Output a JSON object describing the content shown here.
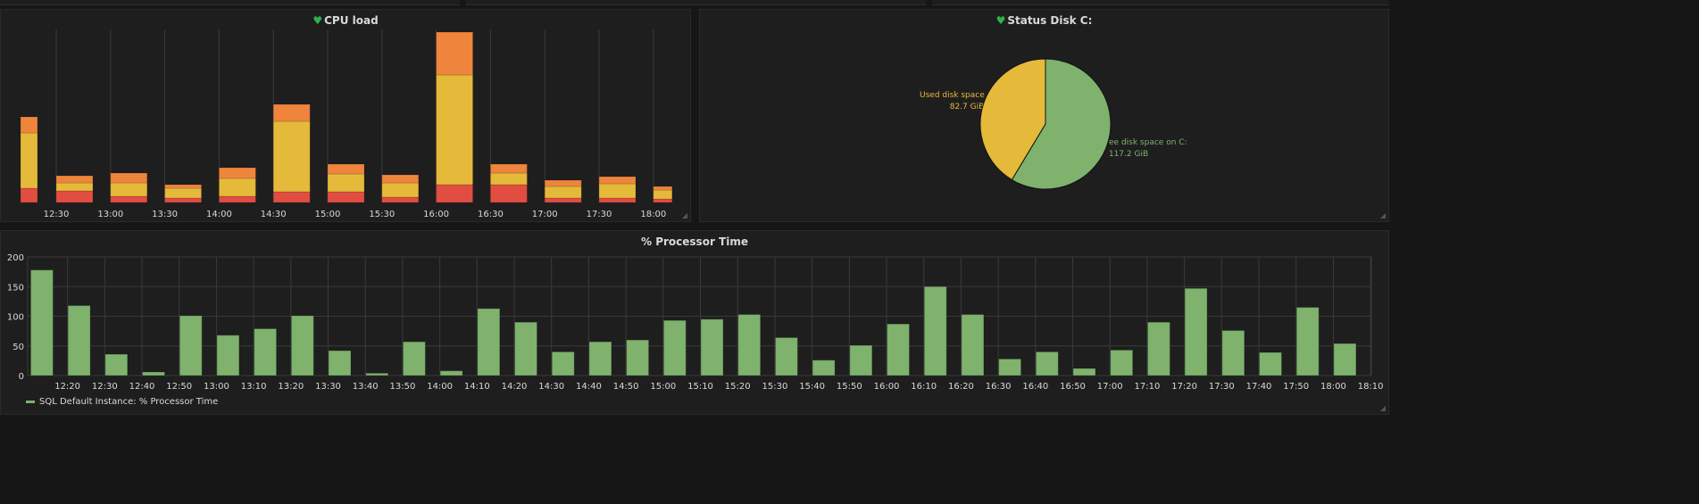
{
  "panels": {
    "cpu": {
      "title": "CPU load",
      "status_icon": "heart-icon",
      "chart_data": {
        "type": "bar",
        "stacked": true,
        "title": "CPU load",
        "x_ticks": [
          "12:30",
          "13:00",
          "13:30",
          "14:00",
          "14:30",
          "15:00",
          "15:30",
          "16:00",
          "16:30",
          "17:00",
          "17:30",
          "18:00"
        ],
        "series": [
          {
            "name": "series-red",
            "color": "#e24d42",
            "values": [
              16,
              13,
              7,
              5,
              7,
              12,
              12,
              6,
              20,
              20,
              5,
              5,
              4
            ]
          },
          {
            "name": "series-yellow",
            "color": "#e5b93a",
            "values": [
              62,
              9,
              15,
              11,
              20,
              79,
              20,
              16,
              123,
              13,
              13,
              16,
              10
            ]
          },
          {
            "name": "series-orange",
            "color": "#ef843c",
            "values": [
              18,
              8,
              11,
              4,
              12,
              19,
              11,
              9,
              48,
              10,
              7,
              8,
              4
            ]
          }
        ],
        "ylim": [
          0,
          191
        ],
        "grid": true
      }
    },
    "disk": {
      "title": "Status Disk C:",
      "status_icon": "heart-icon",
      "chart_data": {
        "type": "pie",
        "title": "Status Disk C:",
        "slices": [
          {
            "label": "Free disk space on C:",
            "value": 117.2,
            "value_label": "117.2 GiB",
            "color": "#7eb26d"
          },
          {
            "label": "Used disk space on C:",
            "value": 82.7,
            "value_label": "82.7 GiB",
            "color": "#e5b93a"
          }
        ]
      }
    },
    "processor": {
      "title": "% Processor Time",
      "legend": "SQL Default Instance: % Processor Time",
      "chart_data": {
        "type": "bar",
        "title": "% Processor Time",
        "series": [
          {
            "name": "SQL Default Instance: % Processor Time",
            "color": "#7eb26d",
            "values": [
              178,
              118,
              36,
              6,
              101,
              68,
              79,
              101,
              42,
              4,
              57,
              8,
              113,
              90,
              40,
              57,
              60,
              93,
              95,
              103,
              64,
              26,
              51,
              87,
              150,
              103,
              28,
              40,
              12,
              43,
              90,
              147,
              76,
              39,
              115,
              54
            ]
          }
        ],
        "x_start": "12:10",
        "x_step_minutes": 10,
        "x_ticks": [
          "12:20",
          "12:30",
          "12:40",
          "12:50",
          "13:00",
          "13:10",
          "13:20",
          "13:30",
          "13:40",
          "13:50",
          "14:00",
          "14:10",
          "14:20",
          "14:30",
          "14:40",
          "14:50",
          "15:00",
          "15:10",
          "15:20",
          "15:30",
          "15:40",
          "15:50",
          "16:00",
          "16:10",
          "16:20",
          "16:30",
          "16:40",
          "16:50",
          "17:00",
          "17:10",
          "17:20",
          "17:30",
          "17:40",
          "17:50",
          "18:00",
          "18:10"
        ],
        "y_ticks": [
          "0",
          "50",
          "100",
          "150",
          "200"
        ],
        "ylim": [
          0,
          200
        ],
        "grid": true,
        "legend_position": "bottom-left"
      }
    }
  }
}
